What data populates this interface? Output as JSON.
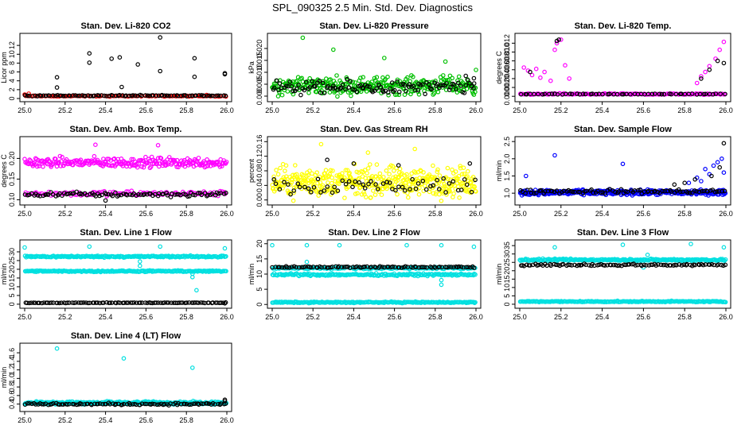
{
  "figure_title": "SPL_090325  2.5 Min. Std. Dev. Diagnostics",
  "chart_data": [
    {
      "type": "scatter",
      "title": "Stan. Dev. Li-820 CO2",
      "ylabel": "Licor ppm",
      "xlim": [
        25.0,
        26.0
      ],
      "ylim": [
        0,
        14
      ],
      "xticks": [
        "25.0",
        "25.2",
        "25.4",
        "25.6",
        "25.8",
        "26.0"
      ],
      "yticks": [
        "0",
        "2",
        "4",
        "6",
        "8",
        "10",
        "12"
      ],
      "series": [
        {
          "name": "band",
          "color": "#ff0000",
          "bands": [
            {
              "center": 0.55,
              "width": 0.25,
              "count": 95
            }
          ],
          "points": [
            [
              25.0,
              0.9
            ],
            [
              25.02,
              1.1
            ],
            [
              25.9,
              0.8
            ]
          ]
        },
        {
          "name": "black",
          "color": "#000000",
          "bands": [
            {
              "center": 0.65,
              "width": 0.3,
              "count": 90
            }
          ],
          "points": [
            [
              25.16,
              4.8
            ],
            [
              25.16,
              2.5
            ],
            [
              25.32,
              10.2
            ],
            [
              25.32,
              8.1
            ],
            [
              25.43,
              9.0
            ],
            [
              25.47,
              9.3
            ],
            [
              25.48,
              2.6
            ],
            [
              25.56,
              7.7
            ],
            [
              25.67,
              13.8
            ],
            [
              25.67,
              6.2
            ],
            [
              25.84,
              9.1
            ],
            [
              25.84,
              4.9
            ],
            [
              25.99,
              5.7
            ],
            [
              25.99,
              5.5
            ]
          ]
        }
      ]
    },
    {
      "type": "scatter",
      "title": "Stan. Dev. Li-820 Pressure",
      "ylabel": "kPa",
      "xlim": [
        25.0,
        26.0
      ],
      "ylim": [
        -0.001,
        0.025
      ],
      "xticks": [
        "25.0",
        "25.2",
        "25.4",
        "25.6",
        "25.8",
        "26.0"
      ],
      "yticks": [
        "0.000",
        "0.005",
        "0.010",
        "0.015",
        "0.020"
      ],
      "series": [
        {
          "name": "green",
          "color": "#00c000",
          "bands": [
            {
              "center": 0.0045,
              "width": 0.009,
              "count": 320
            }
          ],
          "points": [
            [
              25.15,
              0.0245
            ],
            [
              25.3,
              0.0195
            ],
            [
              25.55,
              0.016
            ],
            [
              25.85,
              0.0145
            ],
            [
              26.0,
              0.011
            ]
          ]
        },
        {
          "name": "black",
          "color": "#000000",
          "bands": [
            {
              "center": 0.0035,
              "width": 0.007,
              "count": 110
            }
          ],
          "points": [
            [
              25.95,
              0.0085
            ],
            [
              25.99,
              0.0075
            ]
          ]
        }
      ]
    },
    {
      "type": "scatter",
      "title": "Stan. Dev. Li-820 Temp.",
      "ylabel": "degrees C",
      "xlim": [
        25.0,
        26.0
      ],
      "ylim": [
        -0.0005,
        0.0135
      ],
      "xticks": [
        "25.0",
        "25.2",
        "25.4",
        "25.6",
        "25.8",
        "26.0"
      ],
      "yticks": [
        "0.000",
        "0.002",
        "0.004",
        "0.006",
        "0.008",
        "0.010",
        "0.012"
      ],
      "series": [
        {
          "name": "magenta",
          "color": "#ff00ff",
          "bands": [
            {
              "center": 0.0005,
              "width": 0.0004,
              "count": 150
            }
          ],
          "points": [
            [
              25.02,
              0.0065
            ],
            [
              25.04,
              0.0058
            ],
            [
              25.06,
              0.0048
            ],
            [
              25.08,
              0.0062
            ],
            [
              25.1,
              0.0042
            ],
            [
              25.12,
              0.0055
            ],
            [
              25.15,
              0.0035
            ],
            [
              25.17,
              0.0105
            ],
            [
              25.18,
              0.012
            ],
            [
              25.2,
              0.0128
            ],
            [
              25.22,
              0.007
            ],
            [
              25.24,
              0.004
            ],
            [
              25.86,
              0.003
            ],
            [
              25.88,
              0.0045
            ],
            [
              25.9,
              0.0055
            ],
            [
              25.92,
              0.0068
            ],
            [
              25.95,
              0.0085
            ],
            [
              25.97,
              0.0105
            ],
            [
              25.99,
              0.0123
            ]
          ]
        },
        {
          "name": "black",
          "color": "#000000",
          "bands": [
            {
              "center": 0.0005,
              "width": 0.0002,
              "count": 60
            }
          ],
          "points": [
            [
              25.05,
              0.0055
            ],
            [
              25.18,
              0.0125
            ],
            [
              25.19,
              0.0128
            ],
            [
              25.88,
              0.004
            ],
            [
              25.92,
              0.006
            ],
            [
              25.96,
              0.008
            ],
            [
              25.99,
              0.0075
            ]
          ]
        }
      ]
    },
    {
      "type": "scatter",
      "title": "Stan. Dev. Amb. Box Temp.",
      "ylabel": "degrees C",
      "xlim": [
        25.0,
        26.0
      ],
      "ylim": [
        0.095,
        0.245
      ],
      "xticks": [
        "25.0",
        "25.2",
        "25.4",
        "25.6",
        "25.8",
        "26.0"
      ],
      "yticks": [
        "0.10",
        "0.15",
        "0.20"
      ],
      "series": [
        {
          "name": "magenta",
          "color": "#ff00ff",
          "bands": [
            {
              "center": 0.19,
              "width": 0.03,
              "count": 260
            },
            {
              "center": 0.115,
              "width": 0.015,
              "count": 110
            }
          ],
          "points": [
            [
              25.35,
              0.233
            ],
            [
              25.66,
              0.232
            ]
          ]
        },
        {
          "name": "black",
          "color": "#000000",
          "bands": [
            {
              "center": 0.113,
              "width": 0.014,
              "count": 95
            }
          ],
          "points": [
            [
              25.4,
              0.098
            ]
          ]
        }
      ]
    },
    {
      "type": "scatter",
      "title": "Stan. Dev. Gas Stream RH",
      "ylabel": "percent",
      "xlim": [
        25.0,
        26.0
      ],
      "ylim": [
        -0.005,
        0.165
      ],
      "xticks": [
        "25.0",
        "25.2",
        "25.4",
        "25.6",
        "25.8",
        "26.0"
      ],
      "yticks": [
        "0.00",
        "0.04",
        "0.08",
        "0.12",
        "0.16"
      ],
      "series": [
        {
          "name": "yellow",
          "color": "#ffff00",
          "bands": [
            {
              "center": 0.05,
              "width": 0.1,
              "count": 420
            }
          ],
          "points": [
            [
              25.24,
              0.153
            ],
            [
              25.47,
              0.13
            ],
            [
              25.7,
              0.14
            ]
          ]
        },
        {
          "name": "black",
          "color": "#000000",
          "bands": [
            {
              "center": 0.04,
              "width": 0.06,
              "count": 60
            }
          ],
          "points": [
            [
              25.27,
              0.11
            ],
            [
              25.4,
              0.1
            ],
            [
              25.62,
              0.095
            ],
            [
              25.97,
              0.1
            ]
          ]
        }
      ]
    },
    {
      "type": "scatter",
      "title": "Stan. Dev. Sample Flow",
      "ylabel": "ml/min",
      "xlim": [
        25.0,
        26.0
      ],
      "ylim": [
        0.75,
        2.55
      ],
      "xticks": [
        "25.0",
        "25.2",
        "25.4",
        "25.6",
        "25.8",
        "26.0"
      ],
      "yticks": [
        "1.0",
        "1.5",
        "2.0",
        "2.5"
      ],
      "series": [
        {
          "name": "blue",
          "color": "#0000ff",
          "bands": [
            {
              "center": 1.02,
              "width": 0.18,
              "count": 330
            }
          ],
          "points": [
            [
              25.17,
              2.1
            ],
            [
              25.5,
              1.85
            ],
            [
              25.03,
              1.5
            ],
            [
              25.82,
              1.3
            ],
            [
              25.86,
              1.45
            ],
            [
              25.88,
              1.35
            ],
            [
              25.9,
              1.7
            ],
            [
              25.92,
              1.55
            ],
            [
              25.94,
              1.8
            ],
            [
              25.96,
              1.9
            ],
            [
              25.98,
              2.0
            ],
            [
              25.99,
              1.6
            ]
          ]
        },
        {
          "name": "black",
          "color": "#000000",
          "bands": [
            {
              "center": 1.05,
              "width": 0.15,
              "count": 90
            }
          ],
          "points": [
            [
              25.99,
              2.45
            ],
            [
              25.97,
              1.75
            ],
            [
              25.93,
              1.5
            ],
            [
              25.85,
              1.4
            ],
            [
              25.8,
              1.3
            ],
            [
              25.75,
              1.25
            ]
          ]
        }
      ]
    },
    {
      "type": "scatter",
      "title": "Stan. Dev. Line 1 Flow",
      "ylabel": "ml/min",
      "xlim": [
        25.0,
        26.0
      ],
      "ylim": [
        -0.5,
        35
      ],
      "xticks": [
        "25.0",
        "25.2",
        "25.4",
        "25.6",
        "25.8",
        "26.0"
      ],
      "yticks": [
        "0",
        "5",
        "10",
        "15",
        "20",
        "25",
        "30"
      ],
      "series": [
        {
          "name": "cyan",
          "color": "#00e0e0",
          "bands": [
            {
              "center": 27.3,
              "width": 1.2,
              "count": 230
            },
            {
              "center": 18.9,
              "width": 1.0,
              "count": 230
            }
          ],
          "points": [
            [
              25.0,
              32.5
            ],
            [
              25.32,
              33.0
            ],
            [
              25.67,
              33.0
            ],
            [
              25.99,
              32.0
            ],
            [
              25.57,
              24.5
            ],
            [
              25.57,
              22.0
            ],
            [
              25.83,
              17.5
            ],
            [
              25.83,
              15.5
            ],
            [
              25.85,
              8.0
            ]
          ]
        },
        {
          "name": "black",
          "color": "#000000",
          "bands": [
            {
              "center": 0.8,
              "width": 0.4,
              "count": 100
            }
          ],
          "points": [
            [
              25.99,
              0.5
            ]
          ]
        }
      ]
    },
    {
      "type": "scatter",
      "title": "Stan. Dev. Line 2 Flow",
      "ylabel": "ml/min",
      "xlim": [
        25.0,
        26.0
      ],
      "ylim": [
        -0.2,
        20.2
      ],
      "xticks": [
        "25.0",
        "25.2",
        "25.4",
        "25.6",
        "25.8",
        "26.0"
      ],
      "yticks": [
        "0",
        "5",
        "10",
        "15",
        "20"
      ],
      "series": [
        {
          "name": "cyan",
          "color": "#00e0e0",
          "bands": [
            {
              "center": 12.0,
              "width": 0.9,
              "count": 170
            },
            {
              "center": 9.8,
              "width": 0.9,
              "count": 200
            },
            {
              "center": 0.7,
              "width": 0.5,
              "count": 220
            }
          ],
          "points": [
            [
              25.0,
              19.5
            ],
            [
              25.17,
              19.5
            ],
            [
              25.33,
              19.5
            ],
            [
              25.66,
              19.5
            ],
            [
              25.83,
              19.5
            ],
            [
              25.99,
              19.0
            ],
            [
              25.17,
              14.0
            ],
            [
              25.83,
              6.5
            ],
            [
              25.83,
              8.0
            ]
          ]
        },
        {
          "name": "black",
          "color": "#000000",
          "bands": [
            {
              "center": 12.3,
              "width": 0.6,
              "count": 95
            }
          ],
          "points": []
        }
      ]
    },
    {
      "type": "scatter",
      "title": "Stan. Dev. Line 3 Flow",
      "ylabel": "ml/min",
      "xlim": [
        25.0,
        26.0
      ],
      "ylim": [
        -0.5,
        36.5
      ],
      "xticks": [
        "25.0",
        "25.2",
        "25.4",
        "25.6",
        "25.8",
        "26.0"
      ],
      "yticks": [
        "0",
        "5",
        "10",
        "15",
        "20",
        "25",
        "30",
        "35"
      ],
      "series": [
        {
          "name": "cyan",
          "color": "#00e0e0",
          "bands": [
            {
              "center": 26.5,
              "width": 1.5,
              "count": 250
            },
            {
              "center": 1.6,
              "width": 0.8,
              "count": 230
            }
          ],
          "points": [
            [
              25.17,
              34.0
            ],
            [
              25.5,
              35.5
            ],
            [
              25.83,
              36.0
            ],
            [
              25.99,
              34.0
            ],
            [
              25.62,
              29.5
            ],
            [
              25.6,
              22.0
            ]
          ]
        },
        {
          "name": "black",
          "color": "#000000",
          "bands": [
            {
              "center": 23.5,
              "width": 1.5,
              "count": 100
            }
          ],
          "points": []
        }
      ]
    },
    {
      "type": "scatter",
      "title": "Stan. Dev. Line 4 (LT) Flow",
      "ylabel": "ml/min",
      "xlim": [
        25.0,
        26.0
      ],
      "ylim": [
        0.3,
        1.75
      ],
      "xticks": [
        "25.0",
        "25.2",
        "25.4",
        "25.6",
        "25.8",
        "26.0"
      ],
      "yticks": [
        "0.4",
        "0.6",
        "0.8",
        "1.0",
        "1.2",
        "1.4",
        "1.6"
      ],
      "series": [
        {
          "name": "cyan",
          "color": "#00e0e0",
          "bands": [
            {
              "center": 0.43,
              "width": 0.08,
              "count": 330
            }
          ],
          "points": [
            [
              25.16,
              1.7
            ],
            [
              25.49,
              1.47
            ],
            [
              25.83,
              1.25
            ]
          ]
        },
        {
          "name": "black",
          "color": "#000000",
          "bands": [
            {
              "center": 0.4,
              "width": 0.06,
              "count": 100
            }
          ],
          "points": [
            [
              25.99,
              0.5
            ],
            [
              25.99,
              0.47
            ]
          ]
        }
      ]
    }
  ]
}
